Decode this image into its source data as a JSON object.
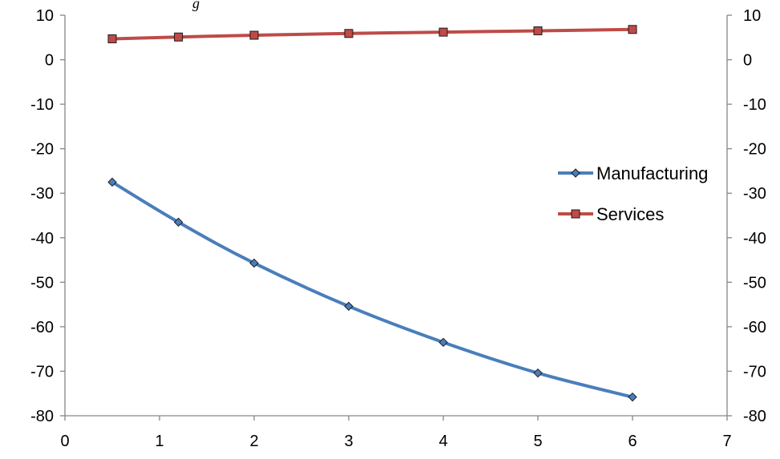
{
  "caption_fragment": "g",
  "chart_data": {
    "type": "line",
    "xlim": [
      0,
      7
    ],
    "ylim": [
      -80,
      10
    ],
    "y2lim": [
      -80,
      10
    ],
    "x_ticks": [
      0,
      1,
      2,
      3,
      4,
      5,
      6,
      7
    ],
    "y_ticks": [
      10,
      0,
      -10,
      -20,
      -30,
      -40,
      -50,
      -60,
      -70,
      -80
    ],
    "grid": false,
    "legend_position": "right",
    "series": [
      {
        "name": "Manufacturing",
        "color": "#4a7ebb",
        "marker": "diamond",
        "x": [
          0.5,
          1.2,
          2,
          3,
          4,
          5,
          6
        ],
        "y": [
          -27.5,
          -36.5,
          -45.7,
          -55.4,
          -63.5,
          -70.4,
          -75.8
        ]
      },
      {
        "name": "Services",
        "color": "#be4b48",
        "marker": "square",
        "x": [
          0.5,
          1.2,
          2,
          3,
          4,
          5,
          6
        ],
        "y": [
          4.7,
          5.1,
          5.5,
          5.9,
          6.2,
          6.5,
          6.8
        ]
      }
    ]
  }
}
